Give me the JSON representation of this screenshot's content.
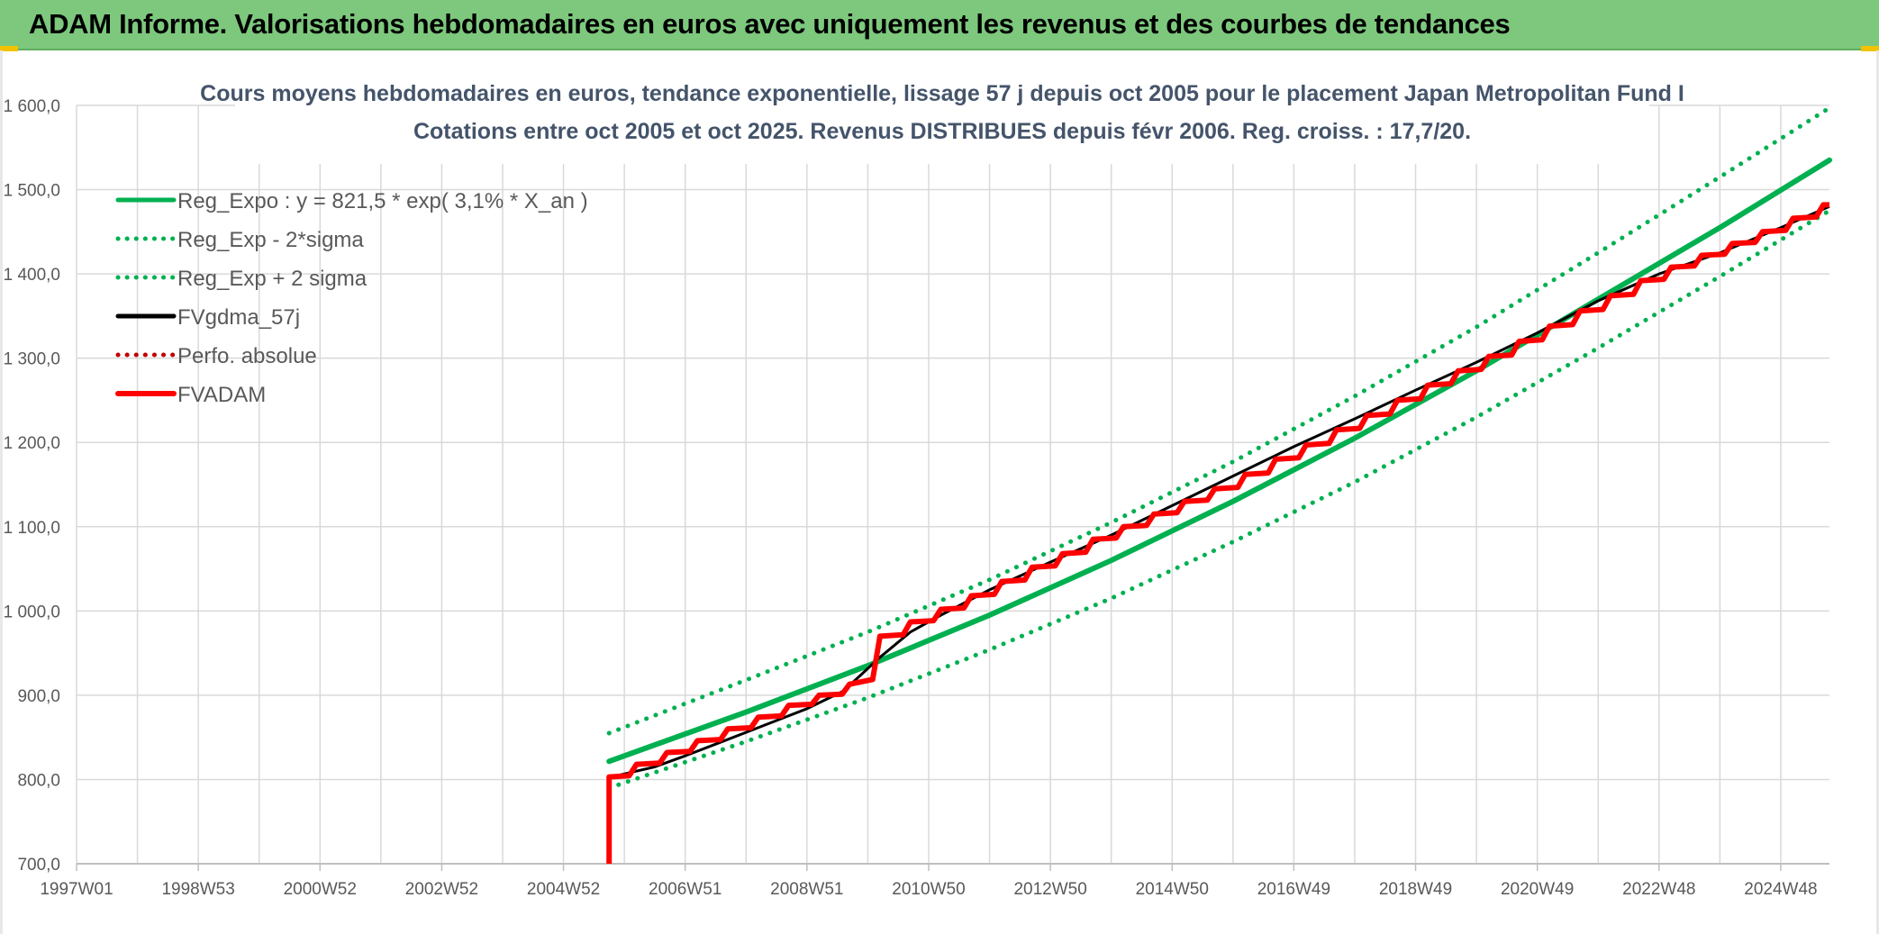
{
  "banner": {
    "title": "ADAM Informe. Valorisations hebdomadaires en euros avec uniquement les revenus et des courbes de tendances",
    "color": "#7dc87d"
  },
  "chart_data": {
    "type": "line",
    "title": "Cours moyens hebdomadaires en euros, tendance exponentielle, lissage 57 j depuis oct 2005 pour le placement Japan Metropolitan Fund I",
    "subtitle": "Cotations entre oct 2005 et oct 2025. Revenus DISTRIBUES depuis févr 2006. Reg. croiss. : 17,7/20.",
    "xlabel": "",
    "ylabel": "",
    "x_range": [
      1997.0,
      2025.8
    ],
    "ylim": [
      700,
      1600
    ],
    "yticks": [
      "700,0",
      "800,0",
      "900,0",
      "1 000,0",
      "1 100,0",
      "1 200,0",
      "1 300,0",
      "1 400,0",
      "1 500,0",
      "1 600,0"
    ],
    "ytick_values": [
      700,
      800,
      900,
      1000,
      1100,
      1200,
      1300,
      1400,
      1500,
      1600
    ],
    "xticks": [
      "1997W01",
      "1998W53",
      "2000W52",
      "2002W52",
      "2004W52",
      "2006W51",
      "2008W51",
      "2010W50",
      "2012W50",
      "2014W50",
      "2016W49",
      "2018W49",
      "2020W49",
      "2022W48",
      "2024W48"
    ],
    "xtick_values": [
      1997.0,
      1999.0,
      2001.0,
      2003.0,
      2005.0,
      2007.0,
      2009.0,
      2011.0,
      2013.0,
      2015.0,
      2017.0,
      2019.0,
      2021.0,
      2023.0,
      2025.0
    ],
    "grid": true,
    "legend_position": "top-left",
    "series": [
      {
        "name": "Reg_Expo : y = 821,5 * exp( 3,1% *  X_an )",
        "color": "#00b050",
        "style": "solid",
        "x": [
          2005.75,
          2008.0,
          2010.0,
          2012.0,
          2014.0,
          2016.0,
          2018.0,
          2020.0,
          2022.0,
          2024.0,
          2025.8
        ],
        "y": [
          821.5,
          880,
          935,
          995,
          1060,
          1130,
          1205,
          1285,
          1370,
          1455,
          1535
        ]
      },
      {
        "name": "Reg_Exp - 2*sigma",
        "color": "#00b050",
        "style": "dotted",
        "x": [
          2005.75,
          2008.0,
          2010.0,
          2012.0,
          2014.0,
          2016.0,
          2018.0,
          2020.0,
          2022.0,
          2024.0,
          2025.8
        ],
        "y": [
          790,
          845,
          897,
          954,
          1015,
          1082,
          1153,
          1230,
          1312,
          1397,
          1475
        ]
      },
      {
        "name": "Reg_Exp + 2 sigma",
        "color": "#00b050",
        "style": "dotted",
        "x": [
          2005.75,
          2008.0,
          2010.0,
          2012.0,
          2014.0,
          2016.0,
          2018.0,
          2020.0,
          2022.0,
          2024.0,
          2025.8
        ],
        "y": [
          855,
          918,
          975,
          1037,
          1105,
          1177,
          1255,
          1337,
          1425,
          1515,
          1597
        ]
      },
      {
        "name": "FVgdma_57j",
        "color": "#000000",
        "style": "solid",
        "x": [
          2005.9,
          2006.5,
          2007.0,
          2007.5,
          2008.0,
          2008.5,
          2009.0,
          2009.6,
          2010.2,
          2010.7,
          2011.2,
          2012.0,
          2013.0,
          2014.0,
          2015.0,
          2016.0,
          2017.0,
          2018.0,
          2019.0,
          2020.0,
          2021.0,
          2022.0,
          2023.0,
          2024.0,
          2025.0,
          2025.8
        ],
        "y": [
          805,
          815,
          828,
          842,
          856,
          870,
          884,
          905,
          945,
          975,
          995,
          1025,
          1058,
          1090,
          1125,
          1160,
          1195,
          1228,
          1262,
          1295,
          1330,
          1368,
          1400,
          1425,
          1455,
          1480
        ]
      },
      {
        "name": "Perfo. absolue",
        "color": "#c00000",
        "style": "dotted",
        "x": [
          2005.75,
          2008.0,
          2010.0,
          2012.0,
          2014.0,
          2016.0,
          2018.0,
          2020.0,
          2022.0,
          2024.0,
          2025.8
        ],
        "y": [
          803,
          860,
          965,
          1030,
          1100,
          1170,
          1240,
          1310,
          1380,
          1440,
          1482
        ]
      },
      {
        "name": "FVADAM",
        "color": "#ff0000",
        "style": "solid-bold",
        "x": [
          2005.75,
          2005.75,
          2025.8
        ],
        "y": [
          700,
          803,
          1482
        ],
        "steps": {
          "y": [
            803,
            818,
            832,
            846,
            860,
            874,
            888,
            900,
            913,
            970,
            987,
            1002,
            1018,
            1035,
            1052,
            1068,
            1085,
            1100,
            1115,
            1130,
            1145,
            1162,
            1180,
            1197,
            1215,
            1232,
            1250,
            1268,
            1285,
            1302,
            1320,
            1338,
            1356,
            1374,
            1392,
            1408,
            1422,
            1436,
            1450,
            1466,
            1482
          ],
          "step_years": [
            2006.2,
            2006.7,
            2007.2,
            2007.7,
            2008.2,
            2008.7,
            2009.2,
            2009.7,
            2010.2,
            2010.7,
            2011.2,
            2011.7,
            2012.2,
            2012.7,
            2013.2,
            2013.7,
            2014.2,
            2014.7,
            2015.2,
            2015.7,
            2016.2,
            2016.7,
            2017.2,
            2017.7,
            2018.2,
            2018.7,
            2019.2,
            2019.7,
            2020.2,
            2020.7,
            2021.2,
            2021.7,
            2022.2,
            2022.7,
            2023.2,
            2023.7,
            2024.2,
            2024.7,
            2025.2,
            2025.7
          ]
        }
      }
    ]
  }
}
